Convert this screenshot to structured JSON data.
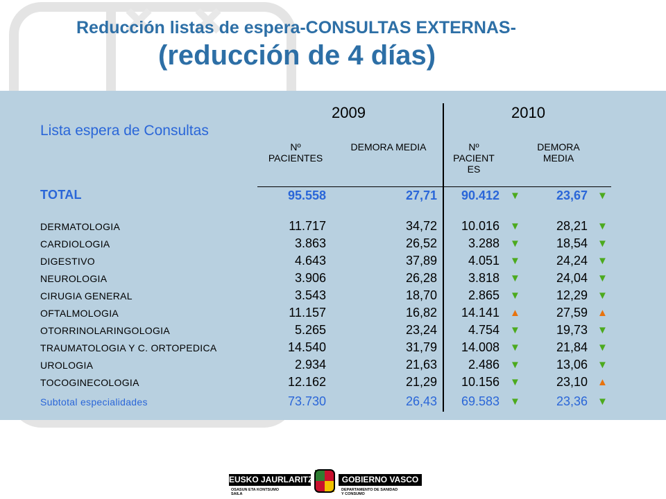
{
  "title": {
    "line1": "Reducción listas de espera-CONSULTAS EXTERNAS-",
    "line2": "(reducción de 4 días)"
  },
  "table": {
    "section_label": "Lista espera de Consultas",
    "years": [
      "2009",
      "2010"
    ],
    "headers": {
      "h2009_patients": [
        "Nº",
        "PACIENTES"
      ],
      "h2009_delay": [
        "DEMORA MEDIA"
      ],
      "h2010_patients": [
        "Nº",
        "PACIENT",
        "ES"
      ],
      "h2010_delay": [
        "DEMORA",
        "MEDIA"
      ]
    },
    "total": {
      "label": "TOTAL",
      "p2009": "95.558",
      "d2009": "27,71",
      "p2010": "90.412",
      "a1": "down",
      "d2010": "23,67",
      "a2": "down"
    },
    "rows": [
      {
        "label": "DERMATOLOGIA",
        "p2009": "11.717",
        "d2009": "34,72",
        "p2010": "10.016",
        "a1": "down",
        "d2010": "28,21",
        "a2": "down"
      },
      {
        "label": "CARDIOLOGIA",
        "p2009": "3.863",
        "d2009": "26,52",
        "p2010": "3.288",
        "a1": "down",
        "d2010": "18,54",
        "a2": "down"
      },
      {
        "label": "DIGESTIVO",
        "p2009": "4.643",
        "d2009": "37,89",
        "p2010": "4.051",
        "a1": "down",
        "d2010": "24,24",
        "a2": "down"
      },
      {
        "label": "NEUROLOGIA",
        "p2009": "3.906",
        "d2009": "26,28",
        "p2010": "3.818",
        "a1": "down",
        "d2010": "24,04",
        "a2": "down"
      },
      {
        "label": "CIRUGIA GENERAL",
        "p2009": "3.543",
        "d2009": "18,70",
        "p2010": "2.865",
        "a1": "down",
        "d2010": "12,29",
        "a2": "down"
      },
      {
        "label": "OFTALMOLOGIA",
        "p2009": "11.157",
        "d2009": "16,82",
        "p2010": "14.141",
        "a1": "up",
        "d2010": "27,59",
        "a2": "up"
      },
      {
        "label": "OTORRINOLARINGOLOGIA",
        "p2009": "5.265",
        "d2009": "23,24",
        "p2010": "4.754",
        "a1": "down",
        "d2010": "19,73",
        "a2": "down"
      },
      {
        "label": "TRAUMATOLOGIA Y C. ORTOPEDICA",
        "p2009": "14.540",
        "d2009": "31,79",
        "p2010": "14.008",
        "a1": "down",
        "d2010": "21,84",
        "a2": "down"
      },
      {
        "label": "UROLOGIA",
        "p2009": "2.934",
        "d2009": "21,63",
        "p2010": "2.486",
        "a1": "down",
        "d2010": "13,06",
        "a2": "down"
      },
      {
        "label": "TOCOGINECOLOGIA",
        "p2009": "12.162",
        "d2009": "21,29",
        "p2010": "10.156",
        "a1": "down",
        "d2010": "23,10",
        "a2": "up"
      }
    ],
    "subtotal": {
      "label": "Subtotal especialidades",
      "p2009": "73.730",
      "d2009": "26,43",
      "p2010": "69.583",
      "a1": "down",
      "d2010": "23,36",
      "a2": "down"
    }
  },
  "footer": {
    "left_bar": "EUSKO JAURLARITZA",
    "right_bar": "GOBIERNO VASCO",
    "left_small": [
      "OSASUN ETA KONTSUMO",
      "SAILA"
    ],
    "right_small": [
      "DEPARTAMENTO DE SANIDAD",
      "Y CONSUMO"
    ],
    "logo": "basque-government-seal"
  },
  "colors": {
    "title": "#2d6fa6",
    "accent": "#2a66d8",
    "panel": "#b8d0e0",
    "down": "#4caa1e",
    "up": "#e8730e"
  },
  "glyphs": {
    "down": "▼",
    "up": "▲"
  }
}
